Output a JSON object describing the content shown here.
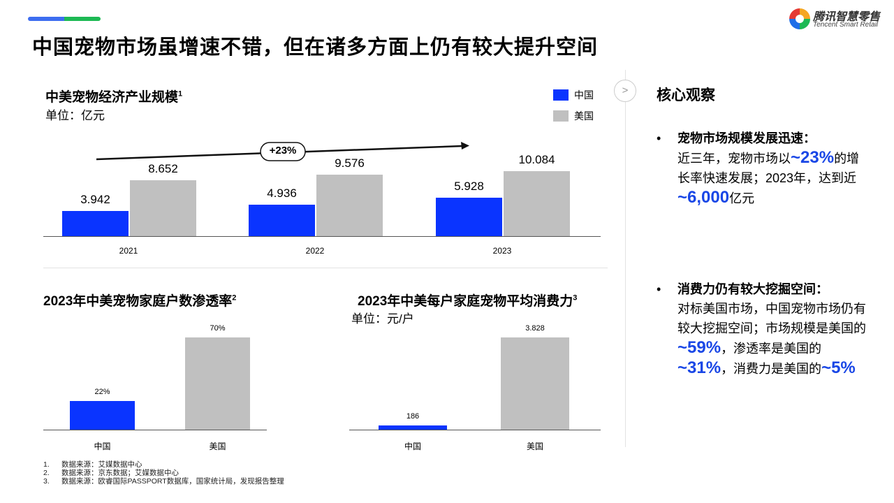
{
  "header": {
    "title": "中国宠物市场虽增速不错，但在诸多方面上仍有较大提升空间",
    "logo_cn": "腾讯智慧零售",
    "logo_en": "Tencent Smart Retail"
  },
  "colors": {
    "china": "#0a34ff",
    "usa": "#c0c0c0",
    "accent": "#1a47e6"
  },
  "legend": {
    "china": "中国",
    "usa": "美国"
  },
  "growth_label": "+23%",
  "chart_data": [
    {
      "type": "bar",
      "title": "中美宠物经济产业规模",
      "title_sup": "1",
      "unit": "单位：亿元",
      "categories": [
        "2021",
        "2022",
        "2023"
      ],
      "series": [
        {
          "name": "中国",
          "values": [
            3.942,
            4.936,
            5.928
          ],
          "labels": [
            "3.942",
            "4.936",
            "5.928"
          ]
        },
        {
          "name": "美国",
          "values": [
            8.652,
            9.576,
            10.084
          ],
          "labels": [
            "8.652",
            "9.576",
            "10.084"
          ]
        }
      ],
      "annotation": "+23%",
      "legend": "top-right"
    },
    {
      "type": "bar",
      "title": "2023年中美宠物家庭户数渗透率",
      "title_sup": "2",
      "categories": [
        "中国",
        "美国"
      ],
      "values": [
        22,
        70
      ],
      "labels": [
        "22%",
        "70%"
      ]
    },
    {
      "type": "bar",
      "title": "2023年中美每户家庭宠物平均消费力",
      "title_sup": "3",
      "unit": "单位：元/户",
      "categories": [
        "中国",
        "美国"
      ],
      "values": [
        186,
        3828
      ],
      "labels": [
        "186",
        "3.828"
      ]
    }
  ],
  "insights": {
    "title": "核心观察",
    "expand_icon": ">",
    "b1": {
      "head": "宠物市场规模发展迅速：",
      "t1": "近三年，宠物市场以",
      "h1": "~23%",
      "t2": "的增长率快速发展；2023年，达到近",
      "h2": "~6,000",
      "t3": "亿元"
    },
    "b2": {
      "head": "消费力仍有较大挖掘空间：",
      "t1": "对标美国市场，中国宠物市场仍有较大挖掘空间；市场规模是美国的",
      "h1": "~59%",
      "t2": "，渗透率是美国的",
      "h2": "~31%",
      "t3": "，消费力是美国的",
      "h3": "~5%"
    }
  },
  "notes": [
    {
      "n": "1.",
      "t": "数据来源：艾媒数据中心"
    },
    {
      "n": "2.",
      "t": "数据来源：京东数据；艾媒数据中心"
    },
    {
      "n": "3.",
      "t": "数据来源：欧睿国际PASSPORT数据库，国家统计局，发现报告整理"
    }
  ]
}
